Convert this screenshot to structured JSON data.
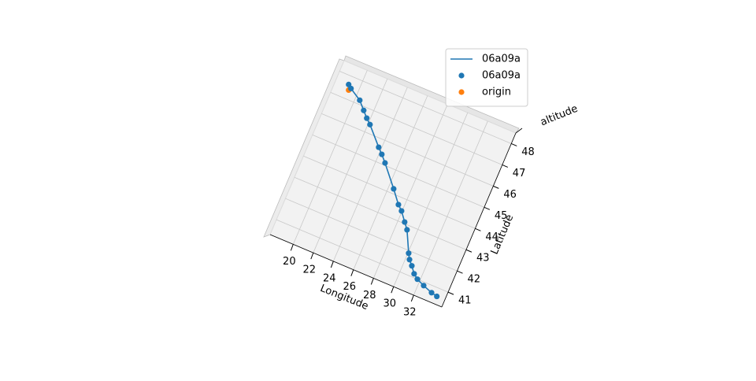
{
  "chart_data": {
    "type": "line3d",
    "xlabel": "Longitude",
    "ylabel": "Latitude",
    "zlabel": "altitude",
    "xlim": [
      17.7,
      34.8
    ],
    "ylim": [
      40.3,
      48.5
    ],
    "xticks": [
      20,
      22,
      24,
      26,
      28,
      30,
      32
    ],
    "yticks": [
      41,
      42,
      43,
      44,
      45,
      46,
      47,
      48
    ],
    "grid": true,
    "legend": "upper right",
    "series": [
      {
        "name": "06a09a",
        "type": "line",
        "color": "#1f77b4",
        "x": [
          18.94,
          19.28,
          20.44,
          21.14,
          21.68,
          22.18,
          23.73,
          24.25,
          24.83,
          26.49,
          27.46,
          27.95,
          28.61,
          29.09,
          30.07,
          30.37,
          30.79,
          31.27,
          31.74,
          32.5,
          33.42,
          34.0
        ],
        "y": [
          47.62,
          47.5,
          47.18,
          46.84,
          46.58,
          46.38,
          45.62,
          45.39,
          45.1,
          44.21,
          43.66,
          43.46,
          43.07,
          42.8,
          41.89,
          41.65,
          41.44,
          41.16,
          41.0,
          40.85,
          40.7,
          40.64
        ]
      },
      {
        "name": "06a09a",
        "type": "scatter",
        "color": "#1f77b4",
        "x": [
          18.94,
          19.28,
          20.44,
          21.14,
          21.68,
          22.18,
          23.73,
          24.25,
          24.83,
          26.49,
          27.46,
          27.95,
          28.61,
          29.09,
          30.07,
          30.37,
          30.79,
          31.27,
          31.74,
          32.5,
          33.42,
          34.0
        ],
        "y": [
          47.62,
          47.5,
          47.18,
          46.84,
          46.58,
          46.38,
          45.62,
          45.39,
          45.1,
          44.21,
          43.66,
          43.46,
          43.07,
          42.8,
          41.89,
          41.65,
          41.44,
          41.16,
          41.0,
          40.85,
          40.7,
          40.64
        ]
      },
      {
        "name": "origin",
        "type": "scatter",
        "color": "#ff7f0e",
        "x": [
          19.14
        ],
        "y": [
          47.4
        ]
      }
    ]
  }
}
